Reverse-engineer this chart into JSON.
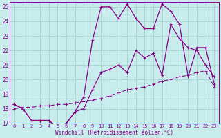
{
  "xlabel": "Windchill (Refroidissement éolien,°C)",
  "xlim": [
    -0.5,
    23.5
  ],
  "ylim": [
    17,
    25.3
  ],
  "yticks": [
    17,
    18,
    19,
    20,
    21,
    22,
    23,
    24,
    25
  ],
  "xticks": [
    0,
    1,
    2,
    3,
    4,
    5,
    6,
    7,
    8,
    9,
    10,
    11,
    12,
    13,
    14,
    15,
    16,
    17,
    18,
    19,
    20,
    21,
    22,
    23
  ],
  "bg_color": "#c8ecec",
  "grid_color": "#a0cccc",
  "line_color": "#880088",
  "line1_x": [
    0,
    1,
    2,
    3,
    4,
    5,
    6,
    7,
    8,
    9,
    10,
    11,
    12,
    13,
    14,
    15,
    16,
    17,
    18,
    19,
    20,
    21,
    22,
    23
  ],
  "line1_y": [
    18.3,
    18.0,
    17.2,
    17.2,
    17.2,
    16.7,
    17.0,
    17.8,
    18.8,
    22.7,
    25.0,
    25.0,
    24.2,
    25.2,
    24.2,
    23.5,
    23.5,
    25.2,
    24.7,
    23.8,
    20.2,
    22.2,
    22.2,
    19.7
  ],
  "line2_x": [
    0,
    1,
    2,
    3,
    4,
    5,
    6,
    7,
    8,
    9,
    10,
    11,
    12,
    13,
    14,
    15,
    16,
    17,
    18,
    19,
    20,
    21,
    22,
    23
  ],
  "line2_y": [
    18.3,
    18.0,
    17.2,
    17.2,
    17.2,
    16.7,
    17.0,
    17.8,
    18.0,
    19.3,
    20.5,
    20.7,
    21.0,
    20.5,
    22.0,
    21.5,
    21.8,
    20.3,
    23.8,
    22.8,
    22.2,
    22.0,
    21.0,
    20.2
  ],
  "line3_x": [
    0,
    1,
    2,
    3,
    4,
    5,
    6,
    7,
    8,
    9,
    10,
    11,
    12,
    13,
    14,
    15,
    16,
    17,
    18,
    19,
    20,
    21,
    22,
    23
  ],
  "line3_y": [
    18.0,
    18.1,
    18.1,
    18.2,
    18.2,
    18.3,
    18.3,
    18.4,
    18.5,
    18.6,
    18.7,
    18.9,
    19.1,
    19.3,
    19.4,
    19.5,
    19.7,
    19.9,
    20.0,
    20.2,
    20.3,
    20.5,
    20.6,
    19.5
  ]
}
